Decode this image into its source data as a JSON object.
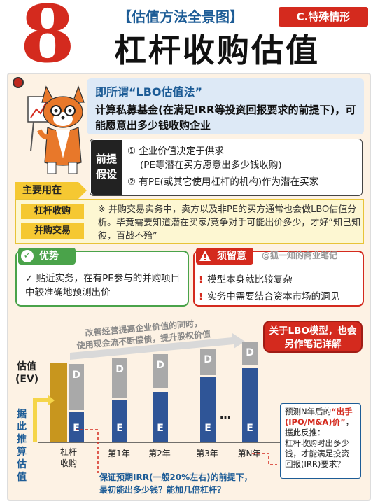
{
  "header": {
    "number": "8",
    "subtitle": "【估值方法全景图】",
    "tag": "C.特殊情形",
    "title": "杠杆收购估值"
  },
  "intro": {
    "head": "即所谓“LBO估值法”",
    "body": "计算私募基金(在满足IRR等投资回报要求的前提下)，可能愿意出多少钱收购企业"
  },
  "premise": {
    "label": "前提假设",
    "items": [
      "① 企业价值决定于供求",
      "(PE等潜在买方愿意出多少钱收购)",
      "② 有PE(或其它使用杠杆的机构)作为潜在买家"
    ]
  },
  "main_use": {
    "head": "主要用在",
    "tags": [
      "杠杆收购",
      "并购交易"
    ],
    "text": "※ 并购交易实务中，卖方以及非PE的买方通常也会做LBO估值分析。毕竟需要知道潜在买家/竞争对手可能出价多少，才好“知己知彼，百战不殆”"
  },
  "advantage": {
    "head": "优势",
    "text": "✓ 贴近实务，在有PE参与的并购项目中较准确地预测出价"
  },
  "caution": {
    "head": "须留意",
    "credit": "@狐一知的商业笔记",
    "items": [
      "模型本身就比较复杂",
      "实务中需要结合资本市场的洞见"
    ],
    "mark": "!"
  },
  "chart_data": {
    "type": "bar",
    "arrow_text": [
      "改善经营提高企业价值的同时，",
      "使用现金流不断偿债，提升股权价值"
    ],
    "ylabel": "估值\n(EV)",
    "side_label": "据此推算估值",
    "categories": [
      "杠杆收购",
      "第1年",
      "第2年",
      "第3年",
      "第N年"
    ],
    "ellipsis": "…",
    "debt_label": "D",
    "equity_label": "E",
    "bottom_note": [
      "保证预期IRR(一般20%左右)的前提下，",
      "最初能出多少钱？能加几倍杠杆？"
    ],
    "colors": {
      "debt": "#a9a9a9",
      "equity": "#2f5597",
      "ev": "#c8961e"
    }
  },
  "bubble": "关于LBO模型，也会另作笔记详解",
  "note": {
    "line1": "预测N年后的",
    "highlight": "“出手(IPO/M&A)价”",
    "line2": "，",
    "line3": "据此反推：",
    "line4": "杠杆收购时出多少钱，才能满足投资回报(IRR)要求？"
  }
}
